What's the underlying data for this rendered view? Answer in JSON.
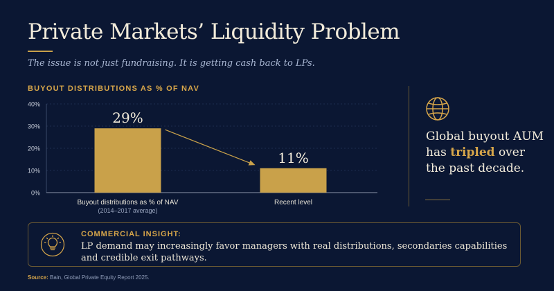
{
  "title": "Private Markets’ Liquidity Problem",
  "subtitle": "The issue is not just fundraising. It is getting cash back to LPs.",
  "chart_heading": "BUYOUT DISTRIBUTIONS AS % OF NAV",
  "chart_data": {
    "type": "bar",
    "categories": [
      "Buyout distributions as % of NAV",
      "Recent level"
    ],
    "category_sublabels": [
      "(2014–2017 average)",
      ""
    ],
    "values": [
      29,
      11
    ],
    "data_labels": [
      "29%",
      "11%"
    ],
    "ylim": [
      0,
      40
    ],
    "yticks": [
      "0%",
      "10%",
      "20%",
      "30%",
      "40%"
    ],
    "grid": true,
    "annotation": "arrow from first bar to second bar",
    "bar_color": "#c9a14a"
  },
  "side": {
    "icon": "globe-icon",
    "text_before": "Global buyout AUM has ",
    "highlight": "tripled",
    "text_after": " over the past decade."
  },
  "insight": {
    "icon": "lightbulb-icon",
    "label": "COMMERCIAL INSIGHT:",
    "text": "LP demand may increasingly favor managers with real distributions, secondaries capabilities and credible exit pathways."
  },
  "source": {
    "label": "Source:",
    "text": "Bain, Global Private Equity Report 2025."
  },
  "colors": {
    "background": "#0b1733",
    "accent": "#d7a64a",
    "text": "#f3ecdb"
  }
}
